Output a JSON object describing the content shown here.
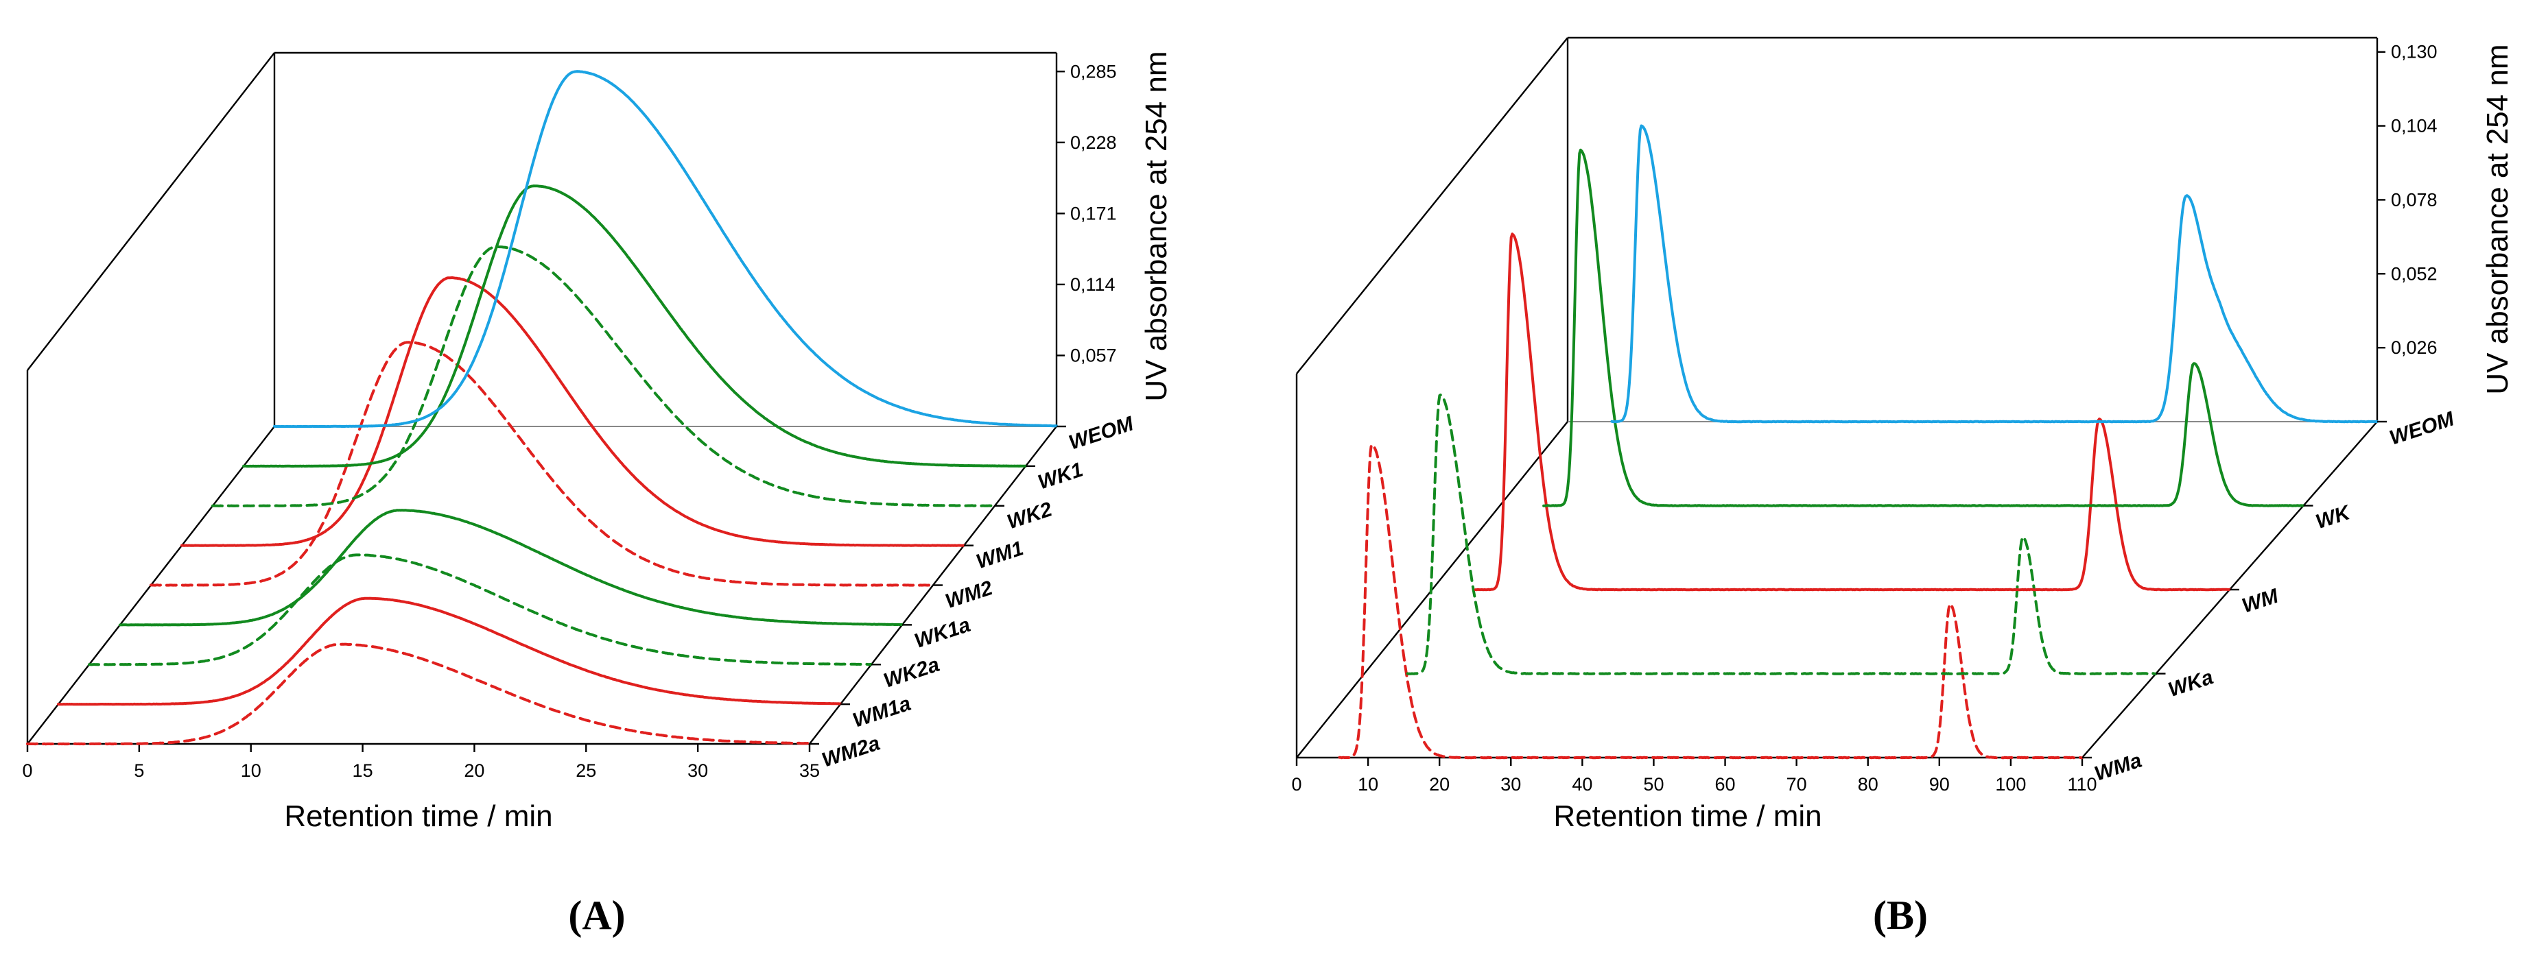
{
  "colors": {
    "blue": "#1BA3E3",
    "green": "#128A1F",
    "red": "#E0201E"
  },
  "chart_data": [
    {
      "type": "line",
      "title": "",
      "panel_label": "A",
      "xlabel": "Retention time / min",
      "ylabel": "UV absorbance at 254 nm",
      "xlim": [
        0,
        35
      ],
      "ylim": [
        0,
        0.3
      ],
      "x_ticks": [
        "0",
        "5",
        "10",
        "15",
        "20",
        "25",
        "30",
        "35"
      ],
      "y_ticks": [
        "0,057",
        "0,114",
        "0,171",
        "0,228",
        "0,285"
      ],
      "series": [
        {
          "name": "WEOM",
          "color": "blue",
          "dashed": false,
          "x_start": 0,
          "x_end": 35,
          "peaks": [
            {
              "x": 13.5,
              "h": 0.285,
              "wl": 2.5,
              "wr": 6.0
            }
          ]
        },
        {
          "name": "WK1",
          "color": "green",
          "dashed": false,
          "x_start": 0,
          "x_end": 35,
          "peaks": [
            {
              "x": 13.0,
              "h": 0.225,
              "wl": 2.4,
              "wr": 5.5
            }
          ]
        },
        {
          "name": "WK2",
          "color": "green",
          "dashed": true,
          "x_start": 0,
          "x_end": 35,
          "peaks": [
            {
              "x": 12.7,
              "h": 0.208,
              "wl": 2.4,
              "wr": 5.5
            }
          ]
        },
        {
          "name": "WM1",
          "color": "red",
          "dashed": false,
          "x_start": 0,
          "x_end": 35,
          "peaks": [
            {
              "x": 12.0,
              "h": 0.215,
              "wl": 2.3,
              "wr": 5.0
            }
          ]
        },
        {
          "name": "WM2",
          "color": "red",
          "dashed": true,
          "x_start": 0,
          "x_end": 35,
          "peaks": [
            {
              "x": 11.5,
              "h": 0.195,
              "wl": 2.3,
              "wr": 5.0
            }
          ]
        },
        {
          "name": "WK1a",
          "color": "green",
          "dashed": false,
          "x_start": 0,
          "x_end": 35,
          "peaks": [
            {
              "x": 12.5,
              "h": 0.092,
              "wl": 2.6,
              "wr": 6.5
            }
          ]
        },
        {
          "name": "WK2a",
          "color": "green",
          "dashed": true,
          "x_start": 0,
          "x_end": 35,
          "peaks": [
            {
              "x": 12.0,
              "h": 0.088,
              "wl": 2.6,
              "wr": 6.5
            }
          ]
        },
        {
          "name": "WM1a",
          "color": "red",
          "dashed": false,
          "x_start": 0,
          "x_end": 35,
          "peaks": [
            {
              "x": 13.8,
              "h": 0.085,
              "wl": 2.6,
              "wr": 6.5
            }
          ]
        },
        {
          "name": "WM2a",
          "color": "red",
          "dashed": true,
          "x_start": 0,
          "x_end": 35,
          "peaks": [
            {
              "x": 14.0,
              "h": 0.08,
              "wl": 2.6,
              "wr": 6.5
            }
          ]
        }
      ]
    },
    {
      "type": "line",
      "title": "",
      "panel_label": "B",
      "xlabel": "Retention time / min",
      "ylabel": "UV absorbance at 254 nm",
      "xlim": [
        0,
        110
      ],
      "ylim": [
        0,
        0.135
      ],
      "x_ticks": [
        "0",
        "10",
        "20",
        "30",
        "40",
        "50",
        "60",
        "70",
        "80",
        "90",
        "100",
        "110"
      ],
      "y_ticks": [
        "0,026",
        "0,052",
        "0,078",
        "0,104",
        "0,130"
      ],
      "series": [
        {
          "name": "WEOM",
          "color": "blue",
          "dashed": false,
          "x_start": 6,
          "x_end": 110,
          "peaks": [
            {
              "x": 10.0,
              "h": 0.104,
              "wl": 0.8,
              "wr": 3.0
            },
            {
              "x": 84.0,
              "h": 0.078,
              "wl": 1.3,
              "wr": 2.4
            },
            {
              "x": 89.0,
              "h": 0.03,
              "wl": 2.0,
              "wr": 4.0
            }
          ]
        },
        {
          "name": "WK",
          "color": "green",
          "dashed": false,
          "x_start": 6,
          "x_end": 110,
          "peaks": [
            {
              "x": 11.0,
              "h": 0.125,
              "wl": 0.7,
              "wr": 2.8
            },
            {
              "x": 95.0,
              "h": 0.05,
              "wl": 1.0,
              "wr": 2.2
            }
          ]
        },
        {
          "name": "WM",
          "color": "red",
          "dashed": false,
          "x_start": 6,
          "x_end": 110,
          "peaks": [
            {
              "x": 11.0,
              "h": 0.125,
              "wl": 0.7,
              "wr": 2.8
            },
            {
              "x": 92.0,
              "h": 0.06,
              "wl": 1.0,
              "wr": 2.0
            }
          ]
        },
        {
          "name": "WKa",
          "color": "green",
          "dashed": true,
          "x_start": 6,
          "x_end": 110,
          "peaks": [
            {
              "x": 10.5,
              "h": 0.098,
              "wl": 0.8,
              "wr": 3.0
            },
            {
              "x": 91.5,
              "h": 0.048,
              "wl": 0.8,
              "wr": 1.6
            }
          ]
        },
        {
          "name": "WMa",
          "color": "red",
          "dashed": true,
          "x_start": 6,
          "x_end": 110,
          "peaks": [
            {
              "x": 10.5,
              "h": 0.11,
              "wl": 0.8,
              "wr": 3.0
            },
            {
              "x": 91.5,
              "h": 0.054,
              "wl": 0.8,
              "wr": 1.6
            }
          ]
        }
      ]
    }
  ]
}
